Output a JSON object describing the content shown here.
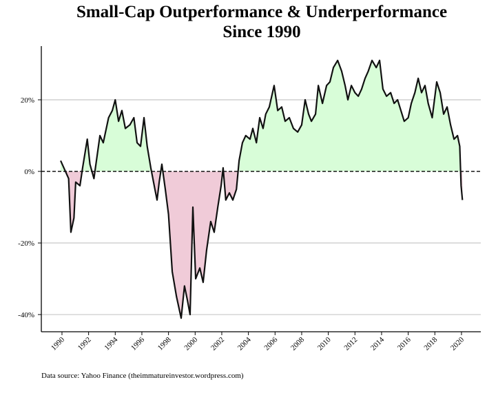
{
  "chart_data": {
    "type": "area",
    "title": [
      "Small-Cap Outperformance & Underperformance",
      "Since 1990"
    ],
    "source": "Data source: Yahoo Finance (theimmatureinvestor.wordpress.com)",
    "x": [
      1989.9,
      1990.5,
      1990.67,
      1990.9,
      1991.03,
      1991.35,
      1991.55,
      1991.9,
      1992.1,
      1992.4,
      1992.85,
      1993.1,
      1993.5,
      1993.78,
      1994.0,
      1994.25,
      1994.5,
      1994.76,
      1995.1,
      1995.4,
      1995.64,
      1995.9,
      1996.16,
      1996.4,
      1996.67,
      1996.98,
      1997.14,
      1997.3,
      1997.5,
      1997.76,
      1998.0,
      1998.28,
      1998.6,
      1998.95,
      1999.2,
      1999.42,
      1999.62,
      1999.83,
      2000.04,
      2000.35,
      2000.6,
      2000.86,
      2001.17,
      2001.43,
      2001.7,
      2001.95,
      2002.1,
      2002.3,
      2002.57,
      2002.83,
      2003.1,
      2003.3,
      2003.55,
      2003.8,
      2004.12,
      2004.33,
      2004.6,
      2004.85,
      2005.1,
      2005.3,
      2005.57,
      2005.93,
      2006.2,
      2006.5,
      2006.76,
      2007.07,
      2007.38,
      2007.7,
      2008.0,
      2008.26,
      2008.52,
      2008.73,
      2009.04,
      2009.25,
      2009.56,
      2009.87,
      2010.12,
      2010.38,
      2010.7,
      2011.0,
      2011.26,
      2011.47,
      2011.73,
      2012.0,
      2012.25,
      2012.5,
      2012.76,
      2013.0,
      2013.28,
      2013.6,
      2013.85,
      2014.1,
      2014.37,
      2014.68,
      2014.94,
      2015.2,
      2015.45,
      2015.7,
      2016.0,
      2016.23,
      2016.5,
      2016.75,
      2017.0,
      2017.26,
      2017.5,
      2017.8,
      2018.14,
      2018.4,
      2018.66,
      2018.92,
      2019.18,
      2019.44,
      2019.7,
      2019.87,
      2019.97,
      2020.07
    ],
    "values": [
      3,
      -2,
      -17,
      -13,
      -3,
      -4,
      1,
      9,
      2,
      -2,
      10,
      8,
      15,
      17,
      20,
      14,
      17,
      12,
      13,
      15,
      8,
      7,
      15,
      7,
      1,
      -5,
      -8,
      -3,
      2,
      -5,
      -12,
      -28,
      -35,
      -41,
      -32,
      -36,
      -40,
      -10,
      -30,
      -27,
      -31,
      -22,
      -14,
      -17,
      -10,
      -4,
      1,
      -8,
      -6,
      -8,
      -5,
      3,
      8,
      10,
      9,
      12,
      8,
      15,
      12,
      16,
      18,
      24,
      17,
      18,
      14,
      15,
      12,
      11,
      13,
      20,
      16,
      14,
      16,
      24,
      19,
      24,
      25,
      29,
      31,
      28,
      24,
      20,
      24,
      22,
      21,
      23,
      26,
      28,
      31,
      29,
      31,
      23,
      21,
      22,
      19,
      20,
      17,
      14,
      15,
      19,
      22,
      26,
      22,
      24,
      19,
      15,
      25,
      22,
      16,
      18,
      13,
      9,
      10,
      7,
      -4,
      -8
    ],
    "color": "#111111",
    "positive_fill": "#d8fdd8",
    "negative_fill": "#f0cbd8",
    "xlim": [
      1988.45,
      2021.45
    ],
    "xticks": [
      1990,
      1992,
      1994,
      1996,
      1998,
      2000,
      2002,
      2004,
      2006,
      2008,
      2010,
      2012,
      2014,
      2016,
      2018,
      2020
    ],
    "ylim": [
      -44.8,
      35
    ],
    "yticks": [
      {
        "value": -40,
        "label": "-40%"
      },
      {
        "value": -20,
        "label": "-20%"
      },
      {
        "value": 0,
        "label": "0%"
      },
      {
        "value": 20,
        "label": "20%"
      }
    ],
    "grid": true
  }
}
